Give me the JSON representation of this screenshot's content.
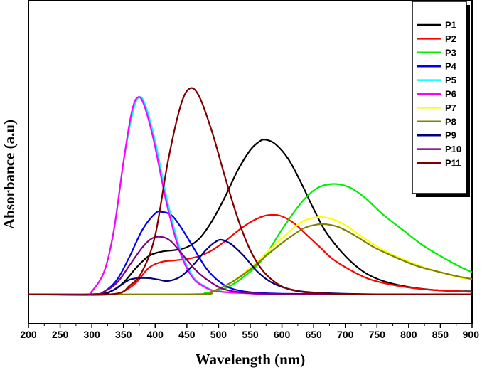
{
  "chart_data": {
    "type": "line",
    "title": "",
    "xlabel": "Wavelength (nm)",
    "ylabel": "Absorbance (a.u)",
    "xlim": [
      200,
      900
    ],
    "xticks": [
      "200",
      "250",
      "300",
      "350",
      "400",
      "450",
      "500",
      "550",
      "600",
      "650",
      "700",
      "750",
      "800",
      "850",
      "900"
    ],
    "ylim": [
      -0.1,
      1.0
    ],
    "grid": false,
    "legend_position": "top-right",
    "series": [
      {
        "name": "P1",
        "color": "#000000",
        "points": [
          [
            200,
            0
          ],
          [
            300,
            0
          ],
          [
            330,
            0.01
          ],
          [
            350,
            0.04
          ],
          [
            370,
            0.09
          ],
          [
            390,
            0.13
          ],
          [
            410,
            0.145
          ],
          [
            430,
            0.15
          ],
          [
            450,
            0.16
          ],
          [
            470,
            0.19
          ],
          [
            490,
            0.25
          ],
          [
            510,
            0.33
          ],
          [
            530,
            0.42
          ],
          [
            550,
            0.49
          ],
          [
            565,
            0.52
          ],
          [
            575,
            0.525
          ],
          [
            590,
            0.51
          ],
          [
            610,
            0.46
          ],
          [
            630,
            0.38
          ],
          [
            650,
            0.29
          ],
          [
            670,
            0.21
          ],
          [
            700,
            0.13
          ],
          [
            730,
            0.075
          ],
          [
            760,
            0.045
          ],
          [
            800,
            0.025
          ],
          [
            850,
            0.013
          ],
          [
            900,
            0.01
          ]
        ]
      },
      {
        "name": "P2",
        "color": "#ff0000",
        "points": [
          [
            200,
            0
          ],
          [
            330,
            0
          ],
          [
            350,
            0.01
          ],
          [
            370,
            0.04
          ],
          [
            390,
            0.09
          ],
          [
            410,
            0.11
          ],
          [
            430,
            0.115
          ],
          [
            450,
            0.12
          ],
          [
            470,
            0.13
          ],
          [
            490,
            0.15
          ],
          [
            510,
            0.18
          ],
          [
            530,
            0.215
          ],
          [
            550,
            0.245
          ],
          [
            570,
            0.265
          ],
          [
            585,
            0.27
          ],
          [
            600,
            0.265
          ],
          [
            620,
            0.24
          ],
          [
            640,
            0.2
          ],
          [
            660,
            0.16
          ],
          [
            680,
            0.12
          ],
          [
            710,
            0.08
          ],
          [
            740,
            0.05
          ],
          [
            780,
            0.03
          ],
          [
            830,
            0.016
          ],
          [
            900,
            0.008
          ]
        ]
      },
      {
        "name": "P3",
        "color": "#00ee00",
        "points": [
          [
            200,
            0
          ],
          [
            450,
            0
          ],
          [
            480,
            0.005
          ],
          [
            510,
            0.02
          ],
          [
            540,
            0.06
          ],
          [
            570,
            0.12
          ],
          [
            600,
            0.22
          ],
          [
            630,
            0.31
          ],
          [
            655,
            0.36
          ],
          [
            680,
            0.375
          ],
          [
            705,
            0.365
          ],
          [
            730,
            0.33
          ],
          [
            760,
            0.27
          ],
          [
            790,
            0.22
          ],
          [
            820,
            0.17
          ],
          [
            850,
            0.13
          ],
          [
            880,
            0.095
          ],
          [
            900,
            0.075
          ]
        ]
      },
      {
        "name": "P4",
        "color": "#0000ee",
        "points": [
          [
            200,
            0
          ],
          [
            300,
            0
          ],
          [
            320,
            0.01
          ],
          [
            340,
            0.05
          ],
          [
            360,
            0.13
          ],
          [
            380,
            0.22
          ],
          [
            400,
            0.275
          ],
          [
            410,
            0.28
          ],
          [
            425,
            0.27
          ],
          [
            440,
            0.23
          ],
          [
            460,
            0.16
          ],
          [
            480,
            0.09
          ],
          [
            500,
            0.045
          ],
          [
            520,
            0.02
          ],
          [
            550,
            0.007
          ],
          [
            600,
            0.002
          ],
          [
            700,
            0
          ],
          [
            900,
            0
          ]
        ]
      },
      {
        "name": "P5",
        "color": "#00ffff",
        "points": [
          [
            200,
            0
          ],
          [
            290,
            0
          ],
          [
            300,
            0.01
          ],
          [
            320,
            0.08
          ],
          [
            335,
            0.22
          ],
          [
            350,
            0.45
          ],
          [
            365,
            0.62
          ],
          [
            375,
            0.67
          ],
          [
            385,
            0.64
          ],
          [
            400,
            0.52
          ],
          [
            420,
            0.31
          ],
          [
            440,
            0.15
          ],
          [
            460,
            0.06
          ],
          [
            480,
            0.025
          ],
          [
            500,
            0.01
          ],
          [
            550,
            0.003
          ],
          [
            600,
            0
          ],
          [
            900,
            0
          ]
        ]
      },
      {
        "name": "P6",
        "color": "#ff00ff",
        "points": [
          [
            200,
            0
          ],
          [
            290,
            0
          ],
          [
            300,
            0.01
          ],
          [
            320,
            0.08
          ],
          [
            335,
            0.22
          ],
          [
            350,
            0.45
          ],
          [
            363,
            0.62
          ],
          [
            373,
            0.67
          ],
          [
            383,
            0.64
          ],
          [
            398,
            0.52
          ],
          [
            418,
            0.31
          ],
          [
            438,
            0.15
          ],
          [
            458,
            0.06
          ],
          [
            478,
            0.025
          ],
          [
            498,
            0.01
          ],
          [
            550,
            0.003
          ],
          [
            600,
            0
          ],
          [
            900,
            0
          ]
        ]
      },
      {
        "name": "P7",
        "color": "#ffff00",
        "points": [
          [
            200,
            0
          ],
          [
            460,
            0
          ],
          [
            490,
            0.01
          ],
          [
            520,
            0.04
          ],
          [
            550,
            0.09
          ],
          [
            580,
            0.15
          ],
          [
            610,
            0.21
          ],
          [
            630,
            0.245
          ],
          [
            650,
            0.26
          ],
          [
            665,
            0.262
          ],
          [
            680,
            0.255
          ],
          [
            700,
            0.235
          ],
          [
            730,
            0.19
          ],
          [
            760,
            0.15
          ],
          [
            790,
            0.12
          ],
          [
            820,
            0.095
          ],
          [
            850,
            0.075
          ],
          [
            880,
            0.057
          ],
          [
            900,
            0.05
          ]
        ]
      },
      {
        "name": "P8",
        "color": "#808000",
        "points": [
          [
            200,
            0
          ],
          [
            460,
            0
          ],
          [
            490,
            0.01
          ],
          [
            520,
            0.04
          ],
          [
            550,
            0.085
          ],
          [
            580,
            0.14
          ],
          [
            610,
            0.19
          ],
          [
            635,
            0.225
          ],
          [
            655,
            0.237
          ],
          [
            670,
            0.238
          ],
          [
            690,
            0.228
          ],
          [
            715,
            0.2
          ],
          [
            745,
            0.16
          ],
          [
            780,
            0.125
          ],
          [
            815,
            0.095
          ],
          [
            850,
            0.075
          ],
          [
            880,
            0.06
          ],
          [
            900,
            0.052
          ]
        ]
      },
      {
        "name": "P9",
        "color": "#000080",
        "points": [
          [
            200,
            0
          ],
          [
            310,
            0
          ],
          [
            330,
            0.01
          ],
          [
            345,
            0.03
          ],
          [
            360,
            0.05
          ],
          [
            375,
            0.055
          ],
          [
            390,
            0.055
          ],
          [
            405,
            0.05
          ],
          [
            420,
            0.045
          ],
          [
            440,
            0.06
          ],
          [
            460,
            0.1
          ],
          [
            480,
            0.15
          ],
          [
            495,
            0.178
          ],
          [
            505,
            0.185
          ],
          [
            520,
            0.17
          ],
          [
            540,
            0.13
          ],
          [
            560,
            0.08
          ],
          [
            580,
            0.045
          ],
          [
            600,
            0.025
          ],
          [
            630,
            0.01
          ],
          [
            670,
            0.004
          ],
          [
            750,
            0
          ],
          [
            900,
            0
          ]
        ]
      },
      {
        "name": "P10",
        "color": "#800080",
        "points": [
          [
            200,
            0
          ],
          [
            300,
            0
          ],
          [
            320,
            0.01
          ],
          [
            340,
            0.04
          ],
          [
            360,
            0.1
          ],
          [
            380,
            0.16
          ],
          [
            395,
            0.19
          ],
          [
            410,
            0.195
          ],
          [
            425,
            0.18
          ],
          [
            445,
            0.13
          ],
          [
            465,
            0.08
          ],
          [
            485,
            0.045
          ],
          [
            505,
            0.02
          ],
          [
            530,
            0.008
          ],
          [
            570,
            0.002
          ],
          [
            650,
            0
          ],
          [
            900,
            0
          ]
        ]
      },
      {
        "name": "P11",
        "color": "#800000",
        "points": [
          [
            200,
            0
          ],
          [
            330,
            0
          ],
          [
            360,
            0.03
          ],
          [
            380,
            0.08
          ],
          [
            400,
            0.2
          ],
          [
            420,
            0.45
          ],
          [
            440,
            0.64
          ],
          [
            455,
            0.7
          ],
          [
            470,
            0.67
          ],
          [
            490,
            0.55
          ],
          [
            510,
            0.4
          ],
          [
            530,
            0.26
          ],
          [
            550,
            0.15
          ],
          [
            570,
            0.08
          ],
          [
            590,
            0.04
          ],
          [
            610,
            0.018
          ],
          [
            640,
            0.006
          ],
          [
            680,
            0.002
          ],
          [
            750,
            0
          ],
          [
            900,
            0
          ]
        ]
      }
    ]
  }
}
